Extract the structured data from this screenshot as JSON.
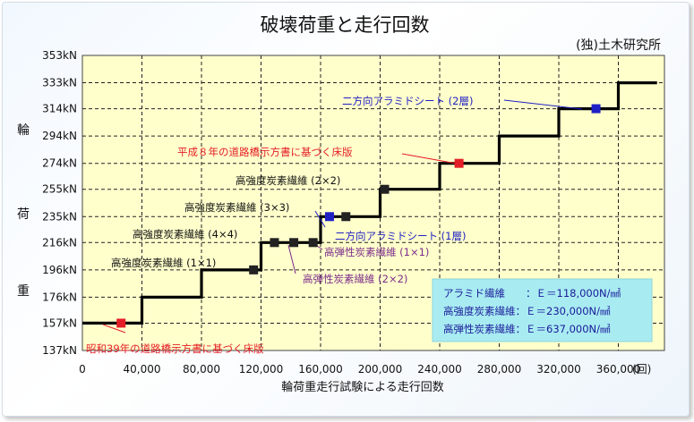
{
  "chart_data": {
    "type": "line",
    "title": "破壊荷重と走行回数",
    "source": "(独)土木研究所",
    "xlabel": "輪荷重走行試験による走行回数",
    "ylabel_chars": [
      "輪",
      "荷",
      "重"
    ],
    "xlim": [
      0,
      360000
    ],
    "ylim": [
      137,
      353
    ],
    "yticks": [
      {
        "v": 137,
        "label": "137kN"
      },
      {
        "v": 157,
        "label": "157kN"
      },
      {
        "v": 176,
        "label": "176kN"
      },
      {
        "v": 196,
        "label": "196kN"
      },
      {
        "v": 216,
        "label": "216kN"
      },
      {
        "v": 235,
        "label": "235kN"
      },
      {
        "v": 255,
        "label": "255kN"
      },
      {
        "v": 274,
        "label": "274kN"
      },
      {
        "v": 294,
        "label": "294kN"
      },
      {
        "v": 314,
        "label": "314kN"
      },
      {
        "v": 333,
        "label": "333kN"
      },
      {
        "v": 353,
        "label": "353kN"
      }
    ],
    "xticks": [
      {
        "v": 0,
        "label": "0"
      },
      {
        "v": 40000,
        "label": "40,000"
      },
      {
        "v": 80000,
        "label": "80,000"
      },
      {
        "v": 120000,
        "label": "120,000"
      },
      {
        "v": 160000,
        "label": "160,000"
      },
      {
        "v": 200000,
        "label": "200,000"
      },
      {
        "v": 240000,
        "label": "240,000"
      },
      {
        "v": 280000,
        "label": "280,000"
      },
      {
        "v": 320000,
        "label": "320,000"
      },
      {
        "v": 360000,
        "label": "360,000"
      }
    ],
    "x_unit": "(回)",
    "grid": true,
    "step_line": [
      [
        0,
        157
      ],
      [
        40000,
        157
      ],
      [
        40000,
        176
      ],
      [
        80000,
        176
      ],
      [
        80000,
        196
      ],
      [
        120000,
        196
      ],
      [
        120000,
        216
      ],
      [
        160000,
        216
      ],
      [
        160000,
        235
      ],
      [
        200000,
        235
      ],
      [
        200000,
        255
      ],
      [
        240000,
        255
      ],
      [
        240000,
        274
      ],
      [
        280000,
        274
      ],
      [
        280000,
        294
      ],
      [
        320000,
        294
      ],
      [
        320000,
        314
      ],
      [
        360000,
        314
      ],
      [
        360000,
        333
      ],
      [
        386000,
        333
      ]
    ],
    "points": [
      {
        "x": 26000,
        "y": 157,
        "color": "#e41e26"
      },
      {
        "x": 115000,
        "y": 196,
        "color": "#222222"
      },
      {
        "x": 129000,
        "y": 216,
        "color": "#222222"
      },
      {
        "x": 142000,
        "y": 216,
        "color": "#222222"
      },
      {
        "x": 155000,
        "y": 216,
        "color": "#222222"
      },
      {
        "x": 166000,
        "y": 235,
        "color": "#1f1fc4"
      },
      {
        "x": 177000,
        "y": 235,
        "color": "#222222"
      },
      {
        "x": 203000,
        "y": 255,
        "color": "#222222"
      },
      {
        "x": 253000,
        "y": 274,
        "color": "#e41e26"
      },
      {
        "x": 345000,
        "y": 314,
        "color": "#1f1fc4"
      }
    ],
    "annotations": [
      {
        "text": "昭和39年の道路橋示方書に基づく床版",
        "color": "#e41e26"
      },
      {
        "text": "高強度炭素繊維 (1×1)",
        "color": "#111111"
      },
      {
        "text": "高強度炭素繊維 (4×4)",
        "color": "#111111"
      },
      {
        "text": "高強度炭素繊維 (3×3)",
        "color": "#111111"
      },
      {
        "text": "高強度炭素繊維 (2×2)",
        "color": "#111111"
      },
      {
        "text": "高弾性炭素繊維 (2×2)",
        "color": "#7b2c8b"
      },
      {
        "text": "高弾性炭素繊維 (1×1)",
        "color": "#7b2c8b"
      },
      {
        "text": "二方向アラミドシート (1層)",
        "color": "#1f1fc4"
      },
      {
        "text": "平成８年の道路橋示方書に基づく床版",
        "color": "#e41e26"
      },
      {
        "text": "二方向アラミドシート (2層)",
        "color": "#1f1fc4"
      }
    ],
    "legend_box": [
      "アラミド繊維　　：Ｅ＝118,000N/㎟",
      "高強度炭素繊維：Ｅ＝230,000N/㎟",
      "高弾性炭素繊維：Ｅ＝637,000N/㎟"
    ]
  }
}
